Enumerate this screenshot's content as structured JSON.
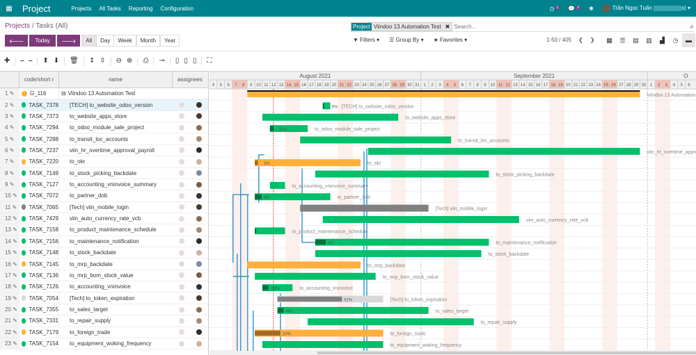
{
  "nav": {
    "apps_icon": "grid-icon",
    "brand": "Project",
    "menu": [
      "Projects",
      "All Tasks",
      "Reporting",
      "Configuration"
    ],
    "activity_count": "1",
    "message_count": "3",
    "user": "Trần Ngọc Tuấn",
    "user_suffix": "s)"
  },
  "breadcrumb": {
    "parent": "Projects",
    "sep": "/",
    "current": "Tasks (All)"
  },
  "nav_buttons": {
    "prev": "🡐",
    "today": "Today",
    "next": "🡒",
    "scales": [
      "All",
      "Day",
      "Week",
      "Month",
      "Year"
    ],
    "active_scale": "All"
  },
  "search": {
    "facet_key": "Project",
    "facet_value": "Viindoo 13 Automation Test",
    "placeholder": "Search..."
  },
  "search_options": {
    "filters": "Filters",
    "group_by": "Group By",
    "favorites": "Favorites"
  },
  "pager": {
    "range": "1-50 / 405"
  },
  "views": [
    "kanban",
    "list",
    "calendar",
    "pivot",
    "graph",
    "activity",
    "gantt"
  ],
  "active_view": "gantt",
  "columns": {
    "code": "code/short r",
    "name": "name",
    "assignees": "assignees"
  },
  "colors": {
    "green": "#00c06b",
    "orange": "#ffb03b",
    "gray": "#808080",
    "lightgray": "#d8d8d8",
    "weekend": "#fdf0ec",
    "weekend_header": "#f4c2b5",
    "link": "#1b8bc9",
    "today": "#e02020"
  },
  "timeline": {
    "months": [
      {
        "label": "August 2021"
      },
      {
        "label": "September 2021"
      },
      {
        "label": "O"
      }
    ],
    "start": "2021-08-04",
    "end": "2021-10-06",
    "today": "2021-08-12"
  },
  "rows": [
    {
      "n": "1",
      "code": "G_116",
      "name": "Viindoo 13 Automation Test",
      "status": "orange",
      "group": true,
      "start": "2021-08-09",
      "end": "2021-09-29",
      "color": "orange",
      "label": "Viindoo 13 Automation Test"
    },
    {
      "n": "2",
      "code": "TASK_7378",
      "name": "[TECH] to_website_odoo_version",
      "status": "green",
      "start": "2021-08-19",
      "end": "2021-08-19",
      "color": "green",
      "label": "[TECH] to_website_odoo_version",
      "progress": 5
    },
    {
      "n": "3",
      "code": "TASK_7373",
      "name": "to_website_apps_store",
      "status": "green",
      "start": "2021-08-11",
      "end": "2021-08-28",
      "color": "green",
      "label": "to_website_apps_store"
    },
    {
      "n": "4",
      "code": "TASK_7294",
      "name": "to_odoo_module_sale_project",
      "status": "green",
      "start": "2021-08-12",
      "end": "2021-08-16",
      "color": "green",
      "label": "to_odoo_module_sale_project",
      "progress": 10
    },
    {
      "n": "5",
      "code": "TASK_7288",
      "name": "to_transit_loc_accounts",
      "status": "green",
      "start": "2021-08-16",
      "end": "2021-09-04",
      "color": "green",
      "label": "to_transit_loc_accounts"
    },
    {
      "n": "6",
      "code": "TASK_7237",
      "name": "viin_hr_overtime_approval_payroll",
      "status": "green",
      "start": "2021-08-25",
      "end": "2021-09-29",
      "color": "green",
      "label": "viin_hr_overtime_approval_payroll"
    },
    {
      "n": "7",
      "code": "TASK_7220",
      "name": "to_okr",
      "status": "orange",
      "start": "2021-08-10",
      "end": "2021-08-23",
      "color": "orange",
      "label": "to_okr",
      "progress": 3
    },
    {
      "n": "8",
      "code": "TASK_7149",
      "name": "to_stock_picking_backdate",
      "status": "green",
      "start": "2021-08-18",
      "end": "2021-09-09",
      "color": "green",
      "label": "to_stock_picking_backdate"
    },
    {
      "n": "9",
      "code": "TASK_7127",
      "name": "to_accounting_vninvoice_summary",
      "status": "green",
      "start": "2021-08-12",
      "end": "2021-08-13",
      "color": "green",
      "label": "to_accounting_vninvoice_summary"
    },
    {
      "n": "10",
      "code": "TASK_7072",
      "name": "to_partner_dob",
      "status": "green",
      "start": "2021-08-10",
      "end": "2021-08-19",
      "color": "green",
      "label": "to_partner_dob",
      "progress": 9
    },
    {
      "n": "11",
      "code": "TASK_7065",
      "name": "[Tech] viin_mobile_login",
      "status": "gray",
      "start": "2021-08-16",
      "end": "2021-09-01",
      "color": "gray",
      "label": "[Tech] viin_mobile_login"
    },
    {
      "n": "12",
      "code": "TASK_7429",
      "name": "viin_auto_currency_rate_vcb",
      "status": "green",
      "start": "2021-08-19",
      "end": "2021-09-13",
      "color": "green",
      "label": "viin_auto_currency_rate_vcb"
    },
    {
      "n": "13",
      "code": "TASK_7158",
      "name": "to_product_maintenance_schedule",
      "status": "green",
      "start": "2021-08-10",
      "end": "2021-08-13",
      "color": "green",
      "label": "to_product_maintenance_schedule",
      "progress": 1
    },
    {
      "n": "14",
      "code": "TASK_7156",
      "name": "to_maintenance_notification",
      "status": "green",
      "start": "2021-08-18",
      "end": "2021-09-09",
      "color": "green",
      "label": "to_maintenance_notification",
      "progress": 6
    },
    {
      "n": "15",
      "code": "TASK_7148",
      "name": "to_stock_backdate",
      "status": "green",
      "start": "2021-08-18",
      "end": "2021-09-08",
      "color": "green",
      "label": "to_stock_backdate"
    },
    {
      "n": "16",
      "code": "TASK_7145",
      "name": "to_mrp_backdate",
      "status": "orange",
      "start": "2021-08-09",
      "end": "2021-08-23",
      "color": "orange",
      "label": "to_mrp_backdate"
    },
    {
      "n": "17",
      "code": "TASK_7136",
      "name": "to_mrp_bom_stock_value",
      "status": "green",
      "start": "2021-08-10",
      "end": "2021-08-25",
      "color": "green",
      "label": "to_mrp_bom_stock_value"
    },
    {
      "n": "18",
      "code": "TASK_7126",
      "name": "to_accounting_vninvoice",
      "status": "green",
      "start": "2021-08-11",
      "end": "2021-08-14",
      "color": "green",
      "label": "to_accounting_vninvoice",
      "progress": 88
    },
    {
      "n": "19",
      "code": "TASK_7054",
      "name": "[Tech] to_token_expiration",
      "status": "lightgray",
      "start": "2021-08-13",
      "end": "2021-08-26",
      "color": "lightgray",
      "label": "[Tech] to_token_expiration",
      "progress": 61
    },
    {
      "n": "20",
      "code": "TASK_7355",
      "name": "to_sales_target",
      "status": "green",
      "start": "2021-08-13",
      "end": "2021-09-01",
      "color": "green",
      "label": "to_sales_target",
      "progress": 4
    },
    {
      "n": "21",
      "code": "TASK_7331",
      "name": "to_repair_supply",
      "status": "green",
      "start": "2021-08-17",
      "end": "2021-09-07",
      "color": "green",
      "label": "to_repair_supply"
    },
    {
      "n": "22",
      "code": "TASK_7179",
      "name": "to_foreign_trade",
      "status": "orange",
      "start": "2021-08-10",
      "end": "2021-08-26",
      "color": "orange",
      "label": "to_foreign_trade",
      "progress": 20
    },
    {
      "n": "23",
      "code": "TASK_7154",
      "name": "to_equipment_woking_frequency",
      "status": "green",
      "start": "2021-08-11",
      "end": "2021-08-26",
      "color": "green",
      "label": "to_equipment_woking_frequency"
    }
  ]
}
